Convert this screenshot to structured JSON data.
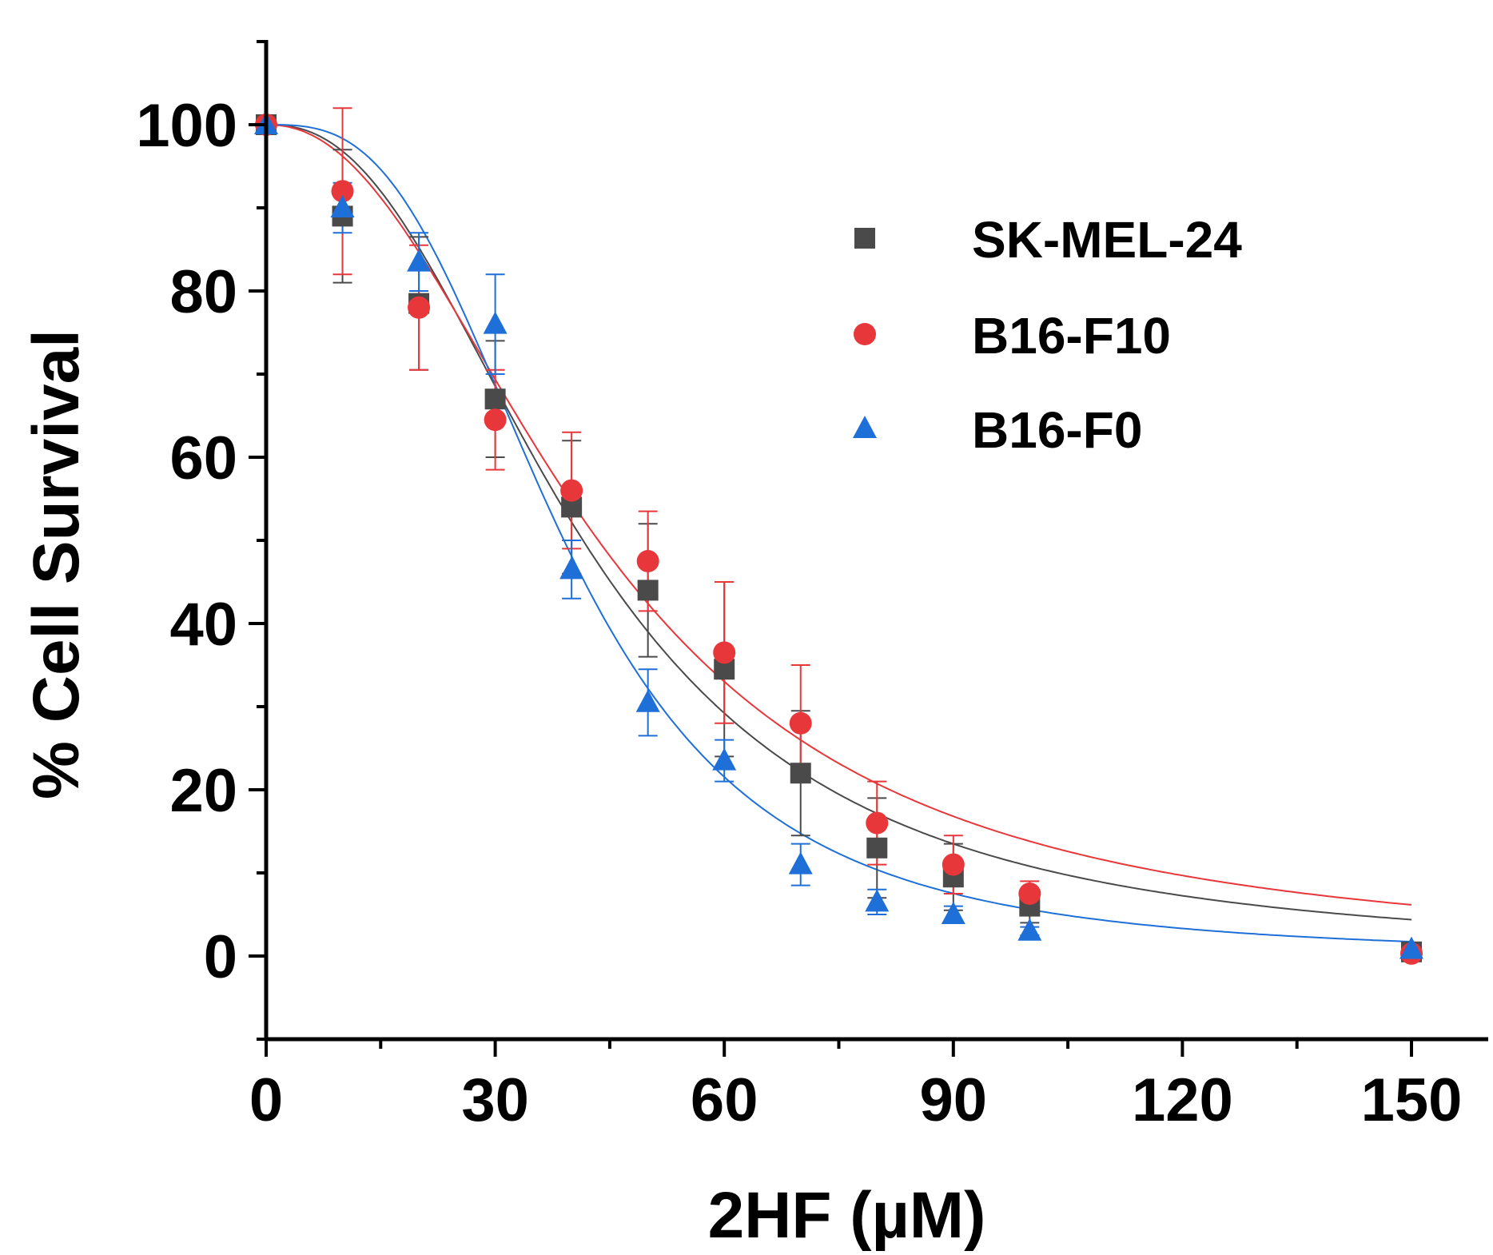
{
  "chart_data": {
    "type": "scatter",
    "title": "",
    "xlabel": "2HF (µM)",
    "ylabel": "% Cell Survival",
    "xlim": [
      0,
      155
    ],
    "ylim": [
      -10,
      110
    ],
    "xticks": [
      0,
      30,
      60,
      90,
      120,
      150
    ],
    "yticks": [
      0,
      20,
      40,
      60,
      80,
      100
    ],
    "x_minor_step": 15,
    "y_minor_step": 10,
    "grid": false,
    "legend_position": "top-right",
    "x": [
      0,
      10,
      20,
      30,
      40,
      50,
      60,
      70,
      80,
      90,
      100,
      150
    ],
    "series": [
      {
        "name": "SK-MEL-24",
        "color": "#4a4a4a",
        "marker": "square",
        "values": [
          100,
          89,
          78.5,
          67,
          54,
          44,
          34.5,
          22,
          13,
          9.5,
          6,
          0.5
        ],
        "errors": [
          0,
          8,
          8,
          7,
          8,
          8,
          10.5,
          7.5,
          6,
          4,
          2,
          0
        ],
        "fit": {
          "top": 100,
          "bottom": 0,
          "ic50": 41.5,
          "hill": 2.4
        }
      },
      {
        "name": "B16-F10",
        "color": "#e8373a",
        "marker": "circle",
        "values": [
          100,
          92,
          78,
          64.5,
          56,
          47.5,
          36.5,
          28,
          16,
          11,
          7.5,
          0.3
        ],
        "errors": [
          0,
          10,
          7.5,
          6,
          7,
          6,
          8.5,
          7,
          5,
          3.5,
          1.5,
          0
        ],
        "fit": {
          "top": 100,
          "bottom": 0,
          "ic50": 43.5,
          "hill": 2.2
        }
      },
      {
        "name": "B16-F0",
        "color": "#1f6fd8",
        "marker": "triangle",
        "values": [
          100,
          90,
          83.5,
          76,
          46.5,
          30.5,
          23.5,
          11,
          6.5,
          5,
          3,
          0.8
        ],
        "errors": [
          0,
          3,
          3.5,
          6,
          3.5,
          4,
          2.5,
          2.5,
          1.5,
          1,
          0.5,
          0
        ],
        "fit": {
          "top": 100,
          "bottom": 0,
          "ic50": 39,
          "hill": 3.0
        }
      }
    ]
  }
}
